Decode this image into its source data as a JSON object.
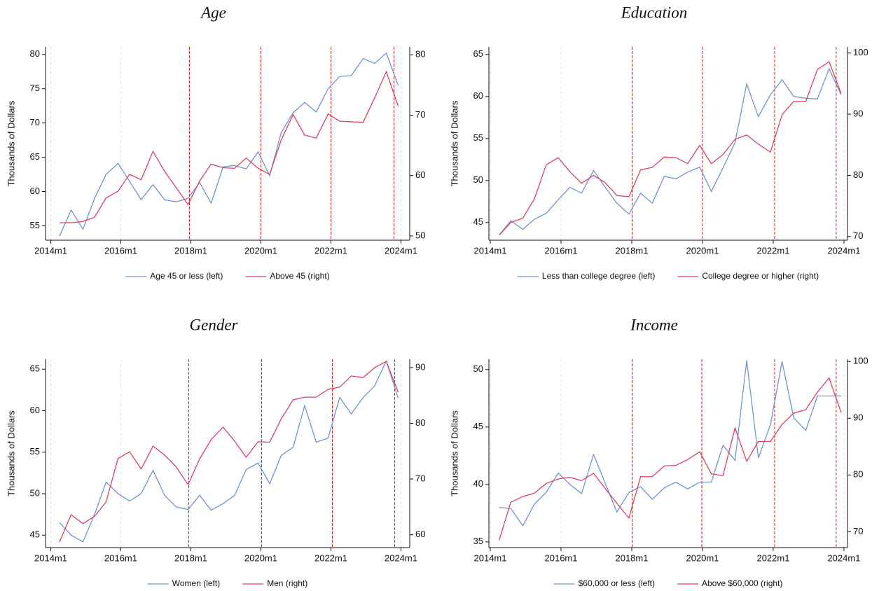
{
  "chart_data": [
    {
      "type": "line",
      "title": "Age",
      "y_label": "Thousands of Dollars",
      "x": [
        2014.25,
        2014.58,
        2014.92,
        2015.25,
        2015.58,
        2015.92,
        2016.25,
        2016.58,
        2016.92,
        2017.25,
        2017.58,
        2017.92,
        2018.25,
        2018.58,
        2018.92,
        2019.25,
        2019.58,
        2019.92,
        2020.25,
        2020.58,
        2020.92,
        2021.25,
        2021.58,
        2021.92,
        2022.25,
        2022.58,
        2022.92,
        2023.25,
        2023.58,
        2023.92
      ],
      "series": [
        {
          "name": "Age 45 or less (left)",
          "color": "#7094d0",
          "axis": "y",
          "values": [
            53.5,
            57.3,
            54.5,
            59,
            62.5,
            64.1,
            61.5,
            58.8,
            61,
            58.8,
            58.5,
            59,
            61.3,
            58.3,
            63.6,
            63.8,
            63.3,
            65.8,
            62.3,
            68.6,
            71.5,
            73,
            71.6,
            75,
            76.8,
            76.9,
            79.4,
            78.7,
            80.2,
            75.5
          ]
        },
        {
          "name": "Above 45 (right)",
          "color": "#e0405e",
          "axis": "y2",
          "values": [
            52.2,
            52.2,
            52.4,
            53.1,
            56.3,
            57.4,
            60.2,
            59.3,
            64.0,
            60.7,
            58.0,
            55.2,
            59.1,
            61.9,
            61.3,
            61.2,
            62.9,
            61.2,
            60.2,
            65.9,
            70.1,
            66.7,
            66.2,
            70.2,
            69.0,
            68.9,
            68.8,
            72.9,
            77.2,
            71.5
          ]
        }
      ],
      "xlim": [
        2013.85,
        2024.25
      ],
      "xticks": [
        {
          "value": 2014,
          "label": "2014m1"
        },
        {
          "value": 2016,
          "label": "2016m1"
        },
        {
          "value": 2018,
          "label": "2018m1"
        },
        {
          "value": 2020,
          "label": "2020m1"
        },
        {
          "value": 2022,
          "label": "2022m1"
        },
        {
          "value": 2024,
          "label": "2024m1"
        }
      ],
      "ylim": [
        52.9,
        81.1
      ],
      "yticks": [
        55,
        60,
        65,
        70,
        75,
        80
      ],
      "y2lim": [
        49.3,
        81.3
      ],
      "y2ticks": [
        50,
        60,
        70,
        80
      ],
      "grid_x": true,
      "legend": "bottom",
      "reference_lines": [
        {
          "x": 2017.96,
          "color": "#e02020"
        },
        {
          "x": 2020.0,
          "color": "#e02020"
        },
        {
          "x": 2022.0,
          "color": "#e02020"
        },
        {
          "x": 2023.8,
          "color": "#e02020"
        }
      ]
    },
    {
      "type": "line",
      "title": "Education",
      "y_label": "Thousands of Dollars",
      "x": [
        2014.25,
        2014.58,
        2014.92,
        2015.25,
        2015.58,
        2015.92,
        2016.25,
        2016.58,
        2016.92,
        2017.25,
        2017.58,
        2017.92,
        2018.25,
        2018.58,
        2018.92,
        2019.25,
        2019.58,
        2019.92,
        2020.25,
        2020.58,
        2020.92,
        2021.25,
        2021.58,
        2021.92,
        2022.25,
        2022.58,
        2022.92,
        2023.25,
        2023.58,
        2023.92
      ],
      "series": [
        {
          "name": "Less than college degree (left)",
          "color": "#7094d0",
          "axis": "y",
          "values": [
            43.5,
            45.2,
            44.2,
            45.4,
            46.1,
            47.7,
            49.2,
            48.5,
            51.2,
            49.2,
            47.3,
            46,
            48.5,
            47.3,
            50.5,
            50.2,
            51,
            51.6,
            48.7,
            51.5,
            54.5,
            61.5,
            57.6,
            60.2,
            62,
            60,
            59.8,
            59.7,
            63.3,
            60.2
          ]
        },
        {
          "name": "College degree or higher (right)",
          "color": "#e0405e",
          "axis": "y2",
          "values": [
            70.2,
            72.3,
            73.0,
            76.2,
            81.7,
            82.9,
            80.6,
            78.7,
            80.0,
            78.8,
            76.7,
            76.5,
            80.9,
            81.3,
            83.0,
            82.9,
            81.9,
            84.9,
            81.9,
            83.4,
            85.9,
            86.6,
            85.1,
            83.8,
            89.9,
            92.1,
            92.1,
            97.3,
            98.6,
            93.4
          ]
        }
      ],
      "xlim": [
        2013.96,
        2024.1
      ],
      "xticks": [
        {
          "value": 2014,
          "label": "2014m1"
        },
        {
          "value": 2016,
          "label": "2016m1"
        },
        {
          "value": 2018,
          "label": "2018m1"
        },
        {
          "value": 2020,
          "label": "2020m1"
        },
        {
          "value": 2022,
          "label": "2022m1"
        },
        {
          "value": 2024,
          "label": "2024m1"
        }
      ],
      "ylim": [
        42.9,
        65.9
      ],
      "yticks": [
        45,
        50,
        55,
        60,
        65
      ],
      "y2lim": [
        69.4,
        101
      ],
      "y2ticks": [
        70,
        80,
        90,
        100
      ],
      "grid_x": true,
      "legend": "bottom",
      "reference_lines": [
        {
          "x": 2018.02,
          "color": "#e02020"
        },
        {
          "x": 2020.0,
          "color": "#e02020"
        },
        {
          "x": 2022.04,
          "color": "#e02020"
        },
        {
          "x": 2023.78,
          "color": "#e02020"
        }
      ]
    },
    {
      "type": "line",
      "title": "Gender",
      "y_label": "Thousands of Dollars",
      "x": [
        2014.25,
        2014.58,
        2014.92,
        2015.25,
        2015.58,
        2015.92,
        2016.25,
        2016.58,
        2016.92,
        2017.25,
        2017.58,
        2017.92,
        2018.25,
        2018.58,
        2018.92,
        2019.25,
        2019.58,
        2019.92,
        2020.25,
        2020.58,
        2020.92,
        2021.25,
        2021.58,
        2021.92,
        2022.25,
        2022.58,
        2022.92,
        2023.25,
        2023.58,
        2023.92
      ],
      "series": [
        {
          "name": "Women (left)",
          "color": "#7094d0",
          "axis": "y",
          "values": [
            46.5,
            45,
            44.2,
            47.5,
            51.4,
            50,
            49.1,
            50,
            52.8,
            49.8,
            48.4,
            48.1,
            49.8,
            48,
            48.8,
            49.8,
            52.9,
            53.7,
            51.2,
            54.6,
            55.6,
            60.6,
            56.2,
            56.7,
            61.6,
            59.6,
            61.6,
            63,
            66,
            61.5
          ]
        },
        {
          "name": "Men (right)",
          "color": "#e0405e",
          "axis": "y2",
          "values": [
            58.7,
            63.6,
            62.0,
            63.3,
            65.9,
            73.7,
            74.9,
            71.8,
            75.9,
            74.3,
            72.2,
            69.0,
            73.6,
            77.1,
            79.3,
            76.8,
            73.9,
            76.7,
            76.6,
            80.8,
            84.2,
            84.7,
            84.7,
            86.1,
            86.5,
            88.5,
            88.2,
            90.0,
            91.1,
            85.6
          ]
        }
      ],
      "xlim": [
        2013.85,
        2024.25
      ],
      "xticks": [
        {
          "value": 2014,
          "label": "2014m1"
        },
        {
          "value": 2016,
          "label": "2016m1"
        },
        {
          "value": 2018,
          "label": "2018m1"
        },
        {
          "value": 2020,
          "label": "2020m1"
        },
        {
          "value": 2022,
          "label": "2022m1"
        },
        {
          "value": 2024,
          "label": "2024m1"
        }
      ],
      "ylim": [
        43.5,
        66.2
      ],
      "yticks": [
        45,
        50,
        55,
        60,
        65
      ],
      "y2lim": [
        57.7,
        91.5
      ],
      "y2ticks": [
        60,
        70,
        80,
        90
      ],
      "grid_x": true,
      "legend": "bottom",
      "reference_lines": [
        {
          "x": 2017.94,
          "color": "#e02020"
        },
        {
          "x": 2020.02,
          "color": "#e02020"
        },
        {
          "x": 2022.04,
          "color": "#e02020"
        },
        {
          "x": 2023.82,
          "color": "#e02020"
        }
      ]
    },
    {
      "type": "line",
      "title": "Income",
      "y_label": "Thousands of Dollars",
      "x": [
        2014.25,
        2014.58,
        2014.92,
        2015.25,
        2015.58,
        2015.92,
        2016.25,
        2016.58,
        2016.92,
        2017.25,
        2017.58,
        2017.92,
        2018.25,
        2018.58,
        2018.92,
        2019.25,
        2019.58,
        2019.92,
        2020.25,
        2020.58,
        2020.92,
        2021.25,
        2021.58,
        2021.92,
        2022.25,
        2022.58,
        2022.92,
        2023.25,
        2023.58,
        2023.92
      ],
      "series": [
        {
          "name": "$60,000 or less (left)",
          "color": "#7094d0",
          "axis": "y",
          "values": [
            38,
            37.9,
            36.4,
            38.3,
            39.3,
            41,
            40,
            39.2,
            42.6,
            40.1,
            37.6,
            39.3,
            39.8,
            38.7,
            39.7,
            40.2,
            39.6,
            40.2,
            40.2,
            43.4,
            42.1,
            50.8,
            42.3,
            45.2,
            50.7,
            45.8,
            44.7,
            47.7,
            47.7,
            47.7
          ]
        },
        {
          "name": "Above $60,000 (right)",
          "color": "#e0405e",
          "axis": "y2",
          "values": [
            68.5,
            75.2,
            76.2,
            76.8,
            78.5,
            79.3,
            79.6,
            79.0,
            80.3,
            77.6,
            75,
            72.4,
            79.7,
            79.7,
            81.6,
            81.7,
            82.7,
            84.1,
            80.2,
            79.9,
            88.3,
            82.4,
            85.9,
            85.9,
            88.9,
            90.9,
            91.5,
            94.6,
            97.1,
            91
          ]
        }
      ],
      "xlim": [
        2013.96,
        2024.1
      ],
      "xticks": [
        {
          "value": 2014,
          "label": "2014m1"
        },
        {
          "value": 2016,
          "label": "2016m1"
        },
        {
          "value": 2018,
          "label": "2018m1"
        },
        {
          "value": 2020,
          "label": "2020m1"
        },
        {
          "value": 2022,
          "label": "2022m1"
        },
        {
          "value": 2024,
          "label": "2024m1"
        }
      ],
      "ylim": [
        34.5,
        50.9
      ],
      "yticks": [
        35,
        40,
        45,
        50
      ],
      "y2lim": [
        67.2,
        100.4
      ],
      "y2ticks": [
        70,
        80,
        90,
        100
      ],
      "grid_x": true,
      "legend": "bottom",
      "reference_lines": [
        {
          "x": 2018.02,
          "color": "#e02020"
        },
        {
          "x": 2019.98,
          "color": "#e02020"
        },
        {
          "x": 2022.04,
          "color": "#e02020"
        },
        {
          "x": 2023.78,
          "color": "#e02020"
        }
      ]
    }
  ]
}
